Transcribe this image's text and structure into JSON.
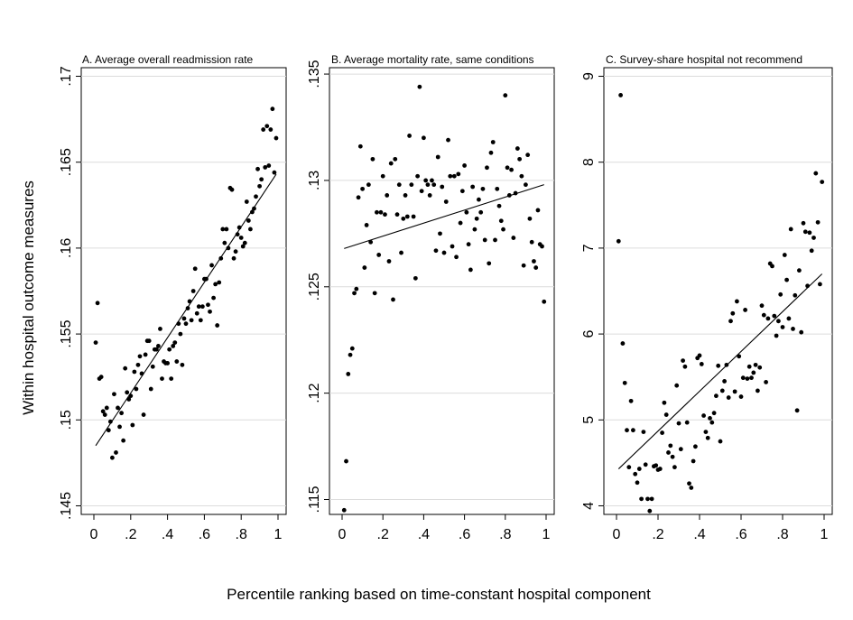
{
  "figure": {
    "ylabel": "Within hospital outcome measures",
    "xlabel": "Percentile ranking based on time-constant hospital component"
  },
  "chart_data": [
    {
      "type": "scatter",
      "title": "A. Average overall readmission rate",
      "xlim": [
        0,
        1
      ],
      "ylim": [
        0.1445,
        0.1705
      ],
      "xticks": [
        0,
        0.2,
        0.4,
        0.6,
        0.8,
        1
      ],
      "xtick_labels": [
        "0",
        ".2",
        ".4",
        ".6",
        ".8",
        "1"
      ],
      "yticks": [
        0.145,
        0.15,
        0.155,
        0.16,
        0.165,
        0.17
      ],
      "ytick_labels": [
        ".145",
        ".15",
        ".155",
        ".16",
        ".165",
        ".17"
      ],
      "grid": true,
      "points": [
        [
          0.01,
          0.1545
        ],
        [
          0.02,
          0.1568
        ],
        [
          0.03,
          0.1524
        ],
        [
          0.04,
          0.1525
        ],
        [
          0.05,
          0.1505
        ],
        [
          0.06,
          0.1503
        ],
        [
          0.07,
          0.1507
        ],
        [
          0.08,
          0.1494
        ],
        [
          0.09,
          0.1499
        ],
        [
          0.1,
          0.1478
        ],
        [
          0.11,
          0.1515
        ],
        [
          0.12,
          0.1481
        ],
        [
          0.13,
          0.1507
        ],
        [
          0.14,
          0.1496
        ],
        [
          0.15,
          0.1504
        ],
        [
          0.16,
          0.1488
        ],
        [
          0.17,
          0.153
        ],
        [
          0.18,
          0.1516
        ],
        [
          0.19,
          0.1512
        ],
        [
          0.2,
          0.1514
        ],
        [
          0.21,
          0.1497
        ],
        [
          0.22,
          0.1528
        ],
        [
          0.23,
          0.1518
        ],
        [
          0.24,
          0.1532
        ],
        [
          0.25,
          0.1537
        ],
        [
          0.26,
          0.1527
        ],
        [
          0.27,
          0.1503
        ],
        [
          0.28,
          0.1538
        ],
        [
          0.29,
          0.1546
        ],
        [
          0.3,
          0.1546
        ],
        [
          0.31,
          0.1518
        ],
        [
          0.32,
          0.1531
        ],
        [
          0.33,
          0.1541
        ],
        [
          0.34,
          0.1541
        ],
        [
          0.35,
          0.1543
        ],
        [
          0.36,
          0.1553
        ],
        [
          0.37,
          0.1524
        ],
        [
          0.38,
          0.1534
        ],
        [
          0.39,
          0.1533
        ],
        [
          0.4,
          0.1533
        ],
        [
          0.41,
          0.1541
        ],
        [
          0.42,
          0.1524
        ],
        [
          0.43,
          0.1543
        ],
        [
          0.44,
          0.1545
        ],
        [
          0.45,
          0.1534
        ],
        [
          0.46,
          0.1556
        ],
        [
          0.47,
          0.155
        ],
        [
          0.48,
          0.1532
        ],
        [
          0.49,
          0.1559
        ],
        [
          0.5,
          0.1556
        ],
        [
          0.51,
          0.1565
        ],
        [
          0.52,
          0.1569
        ],
        [
          0.53,
          0.1558
        ],
        [
          0.54,
          0.1575
        ],
        [
          0.55,
          0.1588
        ],
        [
          0.56,
          0.1562
        ],
        [
          0.57,
          0.1566
        ],
        [
          0.58,
          0.1558
        ],
        [
          0.59,
          0.1566
        ],
        [
          0.6,
          0.1582
        ],
        [
          0.61,
          0.1582
        ],
        [
          0.62,
          0.1567
        ],
        [
          0.63,
          0.1563
        ],
        [
          0.64,
          0.159
        ],
        [
          0.65,
          0.1571
        ],
        [
          0.66,
          0.1579
        ],
        [
          0.67,
          0.1555
        ],
        [
          0.68,
          0.158
        ],
        [
          0.69,
          0.1594
        ],
        [
          0.7,
          0.1611
        ],
        [
          0.71,
          0.1603
        ],
        [
          0.72,
          0.1611
        ],
        [
          0.73,
          0.16
        ],
        [
          0.74,
          0.1635
        ],
        [
          0.75,
          0.1634
        ],
        [
          0.76,
          0.1594
        ],
        [
          0.77,
          0.1598
        ],
        [
          0.78,
          0.1608
        ],
        [
          0.79,
          0.1612
        ],
        [
          0.8,
          0.1606
        ],
        [
          0.81,
          0.1601
        ],
        [
          0.82,
          0.1603
        ],
        [
          0.83,
          0.1627
        ],
        [
          0.84,
          0.1616
        ],
        [
          0.85,
          0.1611
        ],
        [
          0.86,
          0.1621
        ],
        [
          0.87,
          0.1623
        ],
        [
          0.88,
          0.163
        ],
        [
          0.89,
          0.1646
        ],
        [
          0.9,
          0.1636
        ],
        [
          0.91,
          0.164
        ],
        [
          0.92,
          0.1669
        ],
        [
          0.93,
          0.1647
        ],
        [
          0.94,
          0.1671
        ],
        [
          0.95,
          0.1648
        ],
        [
          0.96,
          0.1669
        ],
        [
          0.97,
          0.1681
        ],
        [
          0.98,
          0.1644
        ],
        [
          0.99,
          0.1664
        ]
      ],
      "fit": [
        [
          0.01,
          0.1485
        ],
        [
          0.99,
          0.1643
        ]
      ]
    },
    {
      "type": "scatter",
      "title": "B. Average mortality rate, same conditions",
      "xlim": [
        0,
        1
      ],
      "ylim": [
        0.1143,
        0.1353
      ],
      "xticks": [
        0,
        0.2,
        0.4,
        0.6,
        0.8,
        1
      ],
      "xtick_labels": [
        "0",
        ".2",
        ".4",
        ".6",
        ".8",
        "1"
      ],
      "yticks": [
        0.115,
        0.12,
        0.125,
        0.13,
        0.135
      ],
      "ytick_labels": [
        ".115",
        ".12",
        ".125",
        ".13",
        ".135"
      ],
      "grid": true,
      "points": [
        [
          0.01,
          0.1145
        ],
        [
          0.02,
          0.1168
        ],
        [
          0.03,
          0.1209
        ],
        [
          0.04,
          0.1218
        ],
        [
          0.05,
          0.1221
        ],
        [
          0.06,
          0.1247
        ],
        [
          0.07,
          0.1249
        ],
        [
          0.08,
          0.1292
        ],
        [
          0.09,
          0.1316
        ],
        [
          0.1,
          0.1296
        ],
        [
          0.11,
          0.1259
        ],
        [
          0.12,
          0.1279
        ],
        [
          0.13,
          0.1298
        ],
        [
          0.14,
          0.1271
        ],
        [
          0.15,
          0.131
        ],
        [
          0.16,
          0.1247
        ],
        [
          0.17,
          0.1285
        ],
        [
          0.18,
          0.1265
        ],
        [
          0.19,
          0.1285
        ],
        [
          0.2,
          0.1302
        ],
        [
          0.21,
          0.1284
        ],
        [
          0.22,
          0.1293
        ],
        [
          0.23,
          0.1262
        ],
        [
          0.24,
          0.1308
        ],
        [
          0.25,
          0.1244
        ],
        [
          0.26,
          0.131
        ],
        [
          0.27,
          0.1284
        ],
        [
          0.28,
          0.1298
        ],
        [
          0.29,
          0.1266
        ],
        [
          0.3,
          0.1282
        ],
        [
          0.31,
          0.1293
        ],
        [
          0.32,
          0.1283
        ],
        [
          0.33,
          0.1321
        ],
        [
          0.34,
          0.1298
        ],
        [
          0.35,
          0.1283
        ],
        [
          0.36,
          0.1254
        ],
        [
          0.37,
          0.1302
        ],
        [
          0.38,
          0.1344
        ],
        [
          0.39,
          0.1295
        ],
        [
          0.4,
          0.132
        ],
        [
          0.41,
          0.13
        ],
        [
          0.42,
          0.1298
        ],
        [
          0.43,
          0.1293
        ],
        [
          0.44,
          0.13
        ],
        [
          0.45,
          0.1298
        ],
        [
          0.46,
          0.1267
        ],
        [
          0.47,
          0.1311
        ],
        [
          0.48,
          0.1275
        ],
        [
          0.49,
          0.1297
        ],
        [
          0.5,
          0.1266
        ],
        [
          0.51,
          0.129
        ],
        [
          0.52,
          0.1319
        ],
        [
          0.53,
          0.1302
        ],
        [
          0.54,
          0.1269
        ],
        [
          0.55,
          0.1302
        ],
        [
          0.56,
          0.1264
        ],
        [
          0.57,
          0.1303
        ],
        [
          0.58,
          0.128
        ],
        [
          0.59,
          0.1295
        ],
        [
          0.6,
          0.1307
        ],
        [
          0.61,
          0.1285
        ],
        [
          0.62,
          0.127
        ],
        [
          0.63,
          0.1258
        ],
        [
          0.64,
          0.1297
        ],
        [
          0.65,
          0.1277
        ],
        [
          0.66,
          0.1282
        ],
        [
          0.67,
          0.1291
        ],
        [
          0.68,
          0.1285
        ],
        [
          0.69,
          0.1296
        ],
        [
          0.7,
          0.1272
        ],
        [
          0.71,
          0.1306
        ],
        [
          0.72,
          0.1261
        ],
        [
          0.73,
          0.1313
        ],
        [
          0.74,
          0.1318
        ],
        [
          0.75,
          0.1272
        ],
        [
          0.76,
          0.1296
        ],
        [
          0.77,
          0.1288
        ],
        [
          0.78,
          0.1281
        ],
        [
          0.79,
          0.1277
        ],
        [
          0.8,
          0.134
        ],
        [
          0.81,
          0.1306
        ],
        [
          0.82,
          0.1293
        ],
        [
          0.83,
          0.1305
        ],
        [
          0.84,
          0.1273
        ],
        [
          0.85,
          0.1294
        ],
        [
          0.86,
          0.1315
        ],
        [
          0.87,
          0.131
        ],
        [
          0.88,
          0.1302
        ],
        [
          0.89,
          0.126
        ],
        [
          0.9,
          0.1298
        ],
        [
          0.91,
          0.1312
        ],
        [
          0.92,
          0.1282
        ],
        [
          0.93,
          0.1271
        ],
        [
          0.94,
          0.1262
        ],
        [
          0.95,
          0.1259
        ],
        [
          0.96,
          0.1286
        ],
        [
          0.97,
          0.127
        ],
        [
          0.98,
          0.1269
        ],
        [
          0.99,
          0.1243
        ]
      ],
      "fit": [
        [
          0.01,
          0.1268
        ],
        [
          0.99,
          0.1298
        ]
      ]
    },
    {
      "type": "scatter",
      "title": "C. Survey-share hospital not recommend",
      "xlim": [
        0,
        1
      ],
      "ylim": [
        3.9,
        9.1
      ],
      "xticks": [
        0,
        0.2,
        0.4,
        0.6,
        0.8,
        1
      ],
      "xtick_labels": [
        "0",
        ".2",
        ".4",
        ".6",
        ".8",
        "1"
      ],
      "yticks": [
        4,
        5,
        6,
        7,
        8,
        9
      ],
      "ytick_labels": [
        "4",
        "5",
        "6",
        "7",
        "8",
        "9"
      ],
      "grid": true,
      "points": [
        [
          0.01,
          7.08
        ],
        [
          0.02,
          8.78
        ],
        [
          0.03,
          5.89
        ],
        [
          0.04,
          5.43
        ],
        [
          0.05,
          4.88
        ],
        [
          0.06,
          4.45
        ],
        [
          0.07,
          5.22
        ],
        [
          0.08,
          4.88
        ],
        [
          0.09,
          4.37
        ],
        [
          0.1,
          4.27
        ],
        [
          0.11,
          4.43
        ],
        [
          0.12,
          4.08
        ],
        [
          0.13,
          4.86
        ],
        [
          0.14,
          4.48
        ],
        [
          0.15,
          4.08
        ],
        [
          0.16,
          3.94
        ],
        [
          0.17,
          4.08
        ],
        [
          0.18,
          4.46
        ],
        [
          0.19,
          4.47
        ],
        [
          0.2,
          4.42
        ],
        [
          0.21,
          4.43
        ],
        [
          0.22,
          4.85
        ],
        [
          0.23,
          5.2
        ],
        [
          0.24,
          5.06
        ],
        [
          0.25,
          4.62
        ],
        [
          0.26,
          4.7
        ],
        [
          0.27,
          4.57
        ],
        [
          0.28,
          4.45
        ],
        [
          0.29,
          5.4
        ],
        [
          0.3,
          4.96
        ],
        [
          0.31,
          4.66
        ],
        [
          0.32,
          5.69
        ],
        [
          0.33,
          5.62
        ],
        [
          0.34,
          4.97
        ],
        [
          0.35,
          4.26
        ],
        [
          0.36,
          4.21
        ],
        [
          0.37,
          4.52
        ],
        [
          0.38,
          4.69
        ],
        [
          0.39,
          5.72
        ],
        [
          0.4,
          5.75
        ],
        [
          0.41,
          5.65
        ],
        [
          0.42,
          5.05
        ],
        [
          0.43,
          4.86
        ],
        [
          0.44,
          4.79
        ],
        [
          0.45,
          5.02
        ],
        [
          0.46,
          4.97
        ],
        [
          0.47,
          5.08
        ],
        [
          0.48,
          5.28
        ],
        [
          0.49,
          5.63
        ],
        [
          0.5,
          4.75
        ],
        [
          0.51,
          5.34
        ],
        [
          0.52,
          5.45
        ],
        [
          0.53,
          5.64
        ],
        [
          0.54,
          5.26
        ],
        [
          0.55,
          6.15
        ],
        [
          0.56,
          6.24
        ],
        [
          0.57,
          5.33
        ],
        [
          0.58,
          6.38
        ],
        [
          0.59,
          5.74
        ],
        [
          0.6,
          5.27
        ],
        [
          0.61,
          5.49
        ],
        [
          0.62,
          6.28
        ],
        [
          0.63,
          5.48
        ],
        [
          0.64,
          5.62
        ],
        [
          0.65,
          5.49
        ],
        [
          0.66,
          5.55
        ],
        [
          0.67,
          5.64
        ],
        [
          0.68,
          5.34
        ],
        [
          0.69,
          5.61
        ],
        [
          0.7,
          6.33
        ],
        [
          0.71,
          6.22
        ],
        [
          0.72,
          5.44
        ],
        [
          0.73,
          6.18
        ],
        [
          0.74,
          6.82
        ],
        [
          0.75,
          6.79
        ],
        [
          0.76,
          6.21
        ],
        [
          0.77,
          5.98
        ],
        [
          0.78,
          6.15
        ],
        [
          0.79,
          6.46
        ],
        [
          0.8,
          6.08
        ],
        [
          0.81,
          6.92
        ],
        [
          0.82,
          6.63
        ],
        [
          0.83,
          6.18
        ],
        [
          0.84,
          7.22
        ],
        [
          0.85,
          6.06
        ],
        [
          0.86,
          6.45
        ],
        [
          0.87,
          5.11
        ],
        [
          0.88,
          6.74
        ],
        [
          0.89,
          6.02
        ],
        [
          0.9,
          7.29
        ],
        [
          0.91,
          7.19
        ],
        [
          0.92,
          6.56
        ],
        [
          0.93,
          7.18
        ],
        [
          0.94,
          6.97
        ],
        [
          0.95,
          7.12
        ],
        [
          0.96,
          7.87
        ],
        [
          0.97,
          7.3
        ],
        [
          0.98,
          6.58
        ],
        [
          0.99,
          7.77
        ]
      ],
      "fit": [
        [
          0.01,
          4.43
        ],
        [
          0.99,
          6.7
        ]
      ]
    }
  ]
}
